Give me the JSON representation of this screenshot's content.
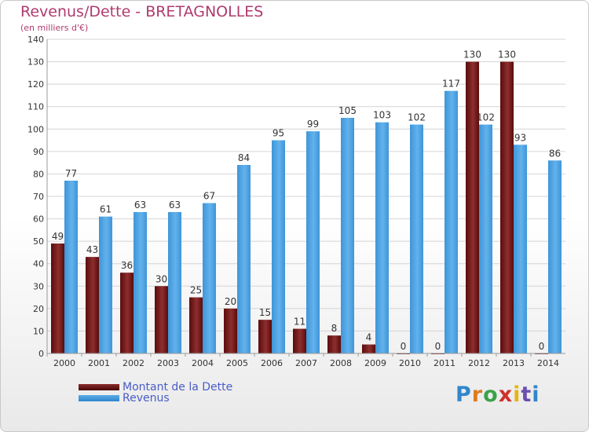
{
  "title": "Revenus/Dette - BRETAGNOLLES",
  "subtitle": "(en milliers d'€)",
  "logo_text": "Proxiti",
  "colors": {
    "debt_top": "#8a2a2a",
    "debt_bottom": "#4a0808",
    "revenue_top": "#5aaee8",
    "revenue_bottom": "#2f86cc",
    "title": "#b03a6e",
    "legend_text": "#4a5cc8"
  },
  "chart_data": {
    "type": "bar",
    "title": "Revenus/Dette - BRETAGNOLLES",
    "subtitle": "(en milliers d'€)",
    "categories": [
      "2000",
      "2001",
      "2002",
      "2003",
      "2004",
      "2005",
      "2006",
      "2007",
      "2008",
      "2009",
      "2010",
      "2011",
      "2012",
      "2013",
      "2014"
    ],
    "series": [
      {
        "name": "Montant de la Dette",
        "values": [
          49,
          43,
          36,
          30,
          25,
          20,
          15,
          11,
          8,
          4,
          0,
          0,
          130,
          130,
          0
        ]
      },
      {
        "name": "Revenus",
        "values": [
          77,
          61,
          63,
          63,
          67,
          84,
          95,
          99,
          105,
          103,
          102,
          117,
          102,
          93,
          86
        ]
      }
    ],
    "ylim": [
      0,
      140
    ],
    "yticks": [
      0,
      10,
      20,
      30,
      40,
      50,
      60,
      70,
      80,
      90,
      100,
      110,
      120,
      130,
      140
    ],
    "grid": true,
    "legend_position": "bottom-left"
  }
}
